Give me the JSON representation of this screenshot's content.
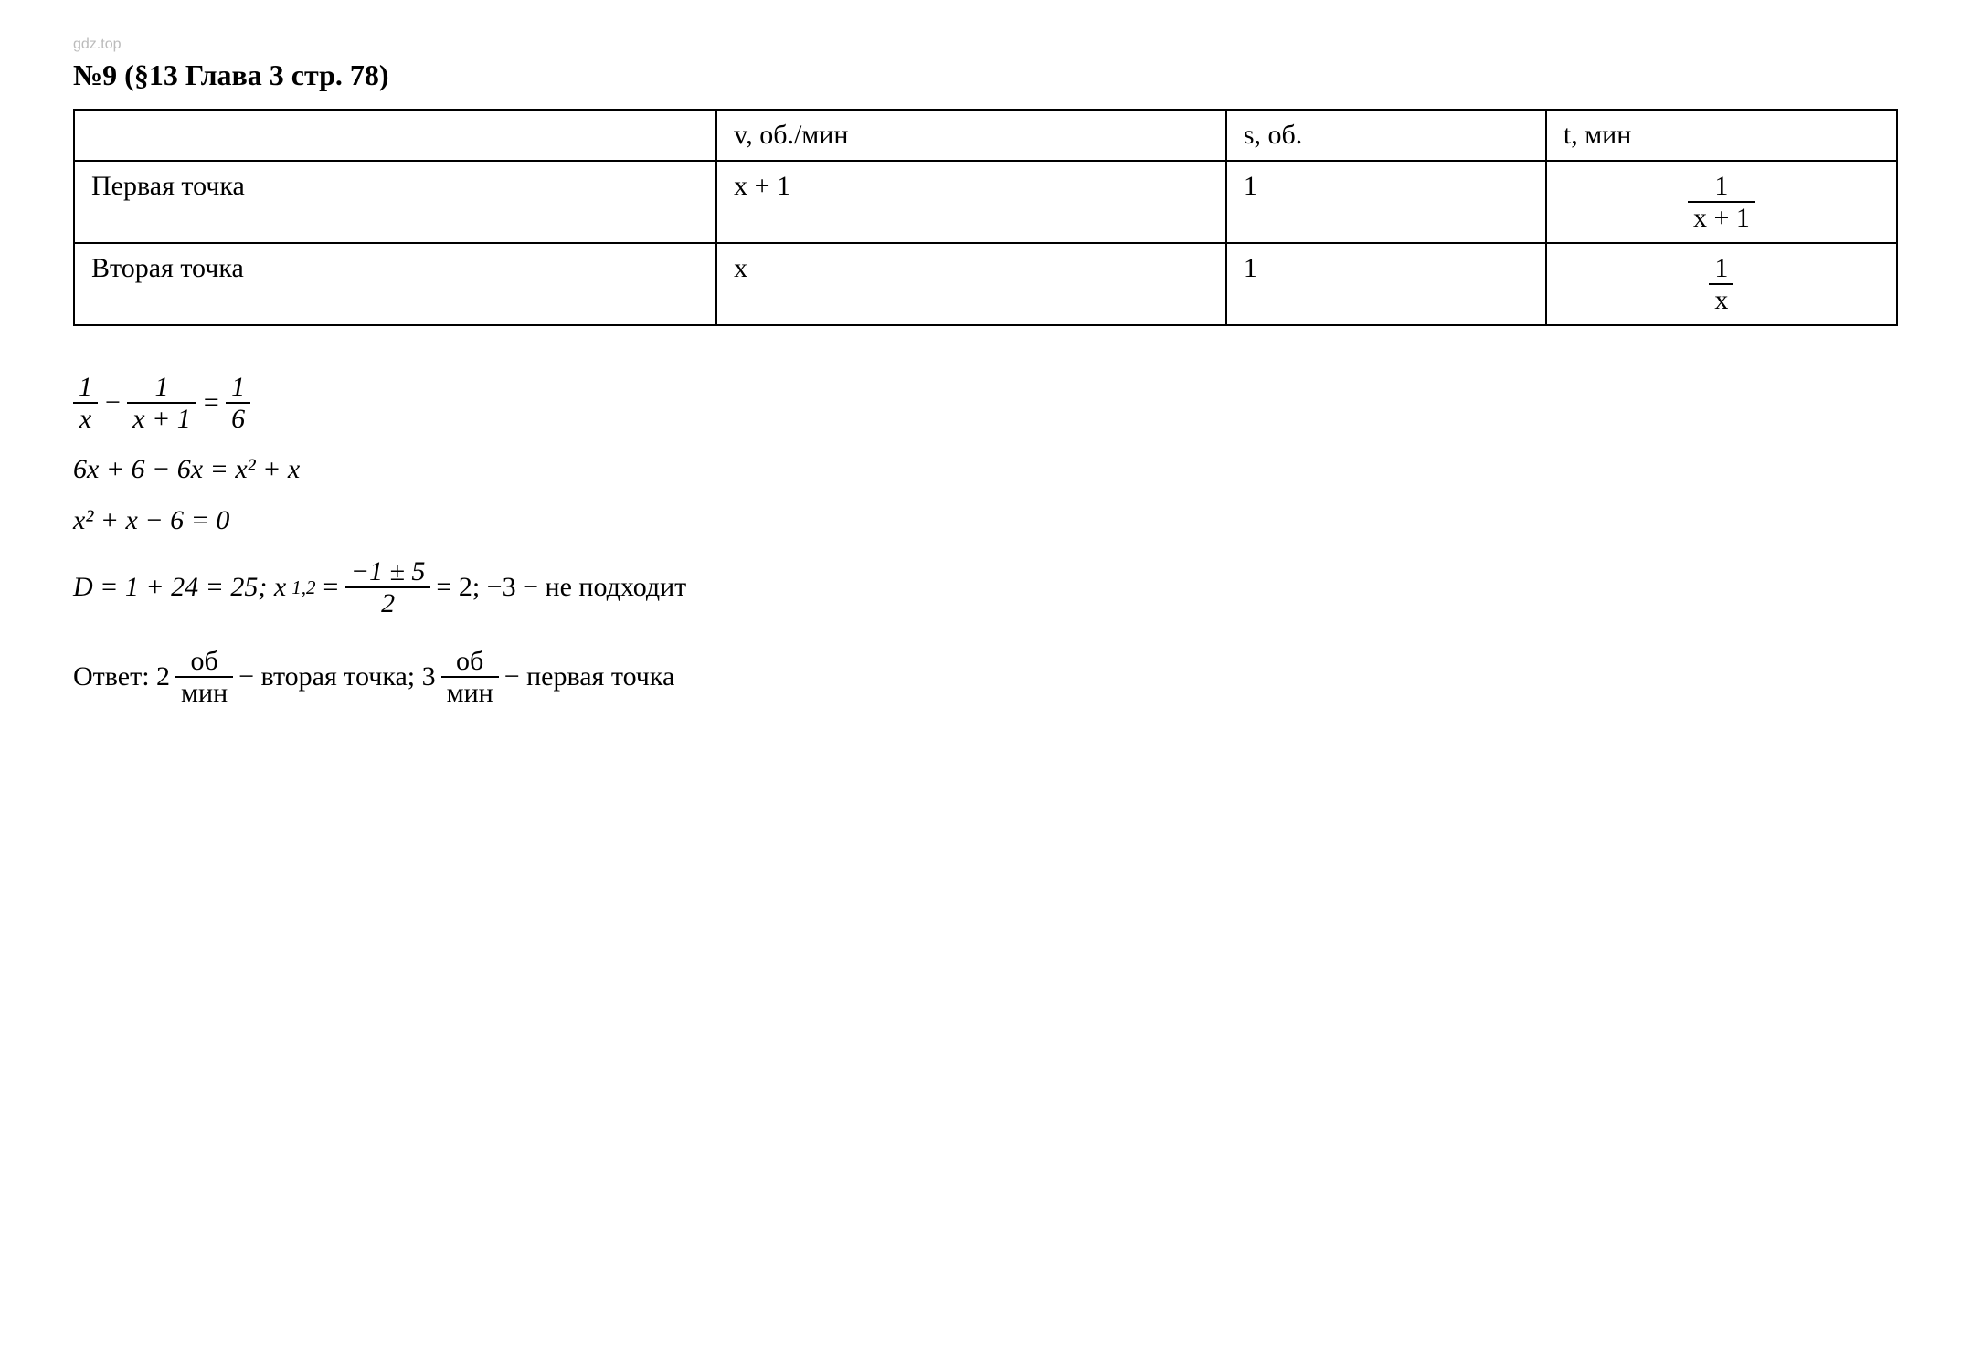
{
  "watermark": "gdz.top",
  "title": "№9 (§13 Глава 3  стр. 78)",
  "table": {
    "headers": [
      "",
      "v, об./мин",
      "s, об.",
      "t, мин"
    ],
    "row1_label": "Первая точка",
    "row1_v": "x + 1",
    "row1_s": "1",
    "row1_t_num": "1",
    "row1_t_den": "x + 1",
    "row2_label": "Вторая точка",
    "row2_v": "x",
    "row2_s": "1",
    "row2_t_num": "1",
    "row2_t_den": "x"
  },
  "eq1": {
    "f1_num": "1",
    "f1_den": "x",
    "minus": "−",
    "f2_num": "1",
    "f2_den": "x + 1",
    "equals": "=",
    "f3_num": "1",
    "f3_den": "6"
  },
  "eq2": "6x + 6 − 6x = x² + x",
  "eq3": "x² + x − 6 = 0",
  "eq4": {
    "d_part": "D = 1 + 24 = 25;  x",
    "sub12": "1,2",
    "eq": " = ",
    "frac_num": "−1 ± 5",
    "frac_den": "2",
    "tail": " = 2; −3 − не подходит"
  },
  "answer": {
    "prefix": "Ответ: 2 ",
    "f1_num": "об",
    "f1_den": "мин",
    "mid": " − вторая точка; 3 ",
    "f2_num": "об",
    "f2_den": "мин",
    "suffix": " − первая точка"
  },
  "colors": {
    "text": "#000000",
    "bg": "#ffffff",
    "border": "#000000",
    "watermark": "#bbbbbb"
  },
  "fontsize": {
    "title": 32,
    "body": 28,
    "table": 30,
    "eq": 30,
    "watermark": 16
  }
}
